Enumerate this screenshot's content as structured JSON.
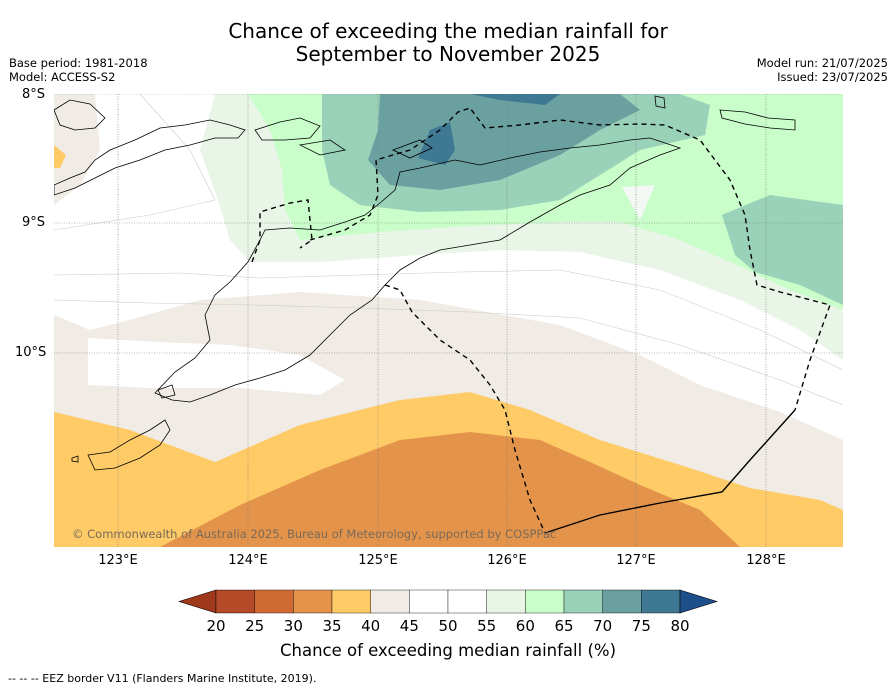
{
  "title": {
    "line1": "Chance of exceeding the median rainfall for",
    "line2": "September to November 2025"
  },
  "meta": {
    "base_period": "Base period: 1981-2018",
    "model": "Model: ACCESS-S2",
    "model_run": "Model run: 21/07/2025",
    "issued": "Issued: 23/07/2025"
  },
  "map": {
    "latitude_labels": [
      "8°S",
      "9°S",
      "10°S"
    ],
    "longitude_labels": [
      "123°E",
      "124°E",
      "125°E",
      "126°E",
      "127°E",
      "128°E"
    ],
    "copyright": "© Commonwealth of Australia 2025, Bureau of Meteorology, supported by COSPPac"
  },
  "legend": {
    "ticks": [
      "20",
      "25",
      "30",
      "35",
      "40",
      "45",
      "50",
      "55",
      "60",
      "65",
      "70",
      "75",
      "80"
    ],
    "colors": [
      "#a0391b",
      "#b54a28",
      "#cf6b32",
      "#e3944a",
      "#fecb67",
      "#f0ebe5",
      "#ffffff",
      "#ffffff",
      "#e8f5e7",
      "#c9fdc9",
      "#99d2b8",
      "#6aa1a0",
      "#3f7892",
      "#1d4f8a"
    ],
    "title": "Chance of exceeding median rainfall (%)"
  },
  "footnote": "--  --  -- EEZ border V11 (Flanders Marine Institute, 2019)."
}
